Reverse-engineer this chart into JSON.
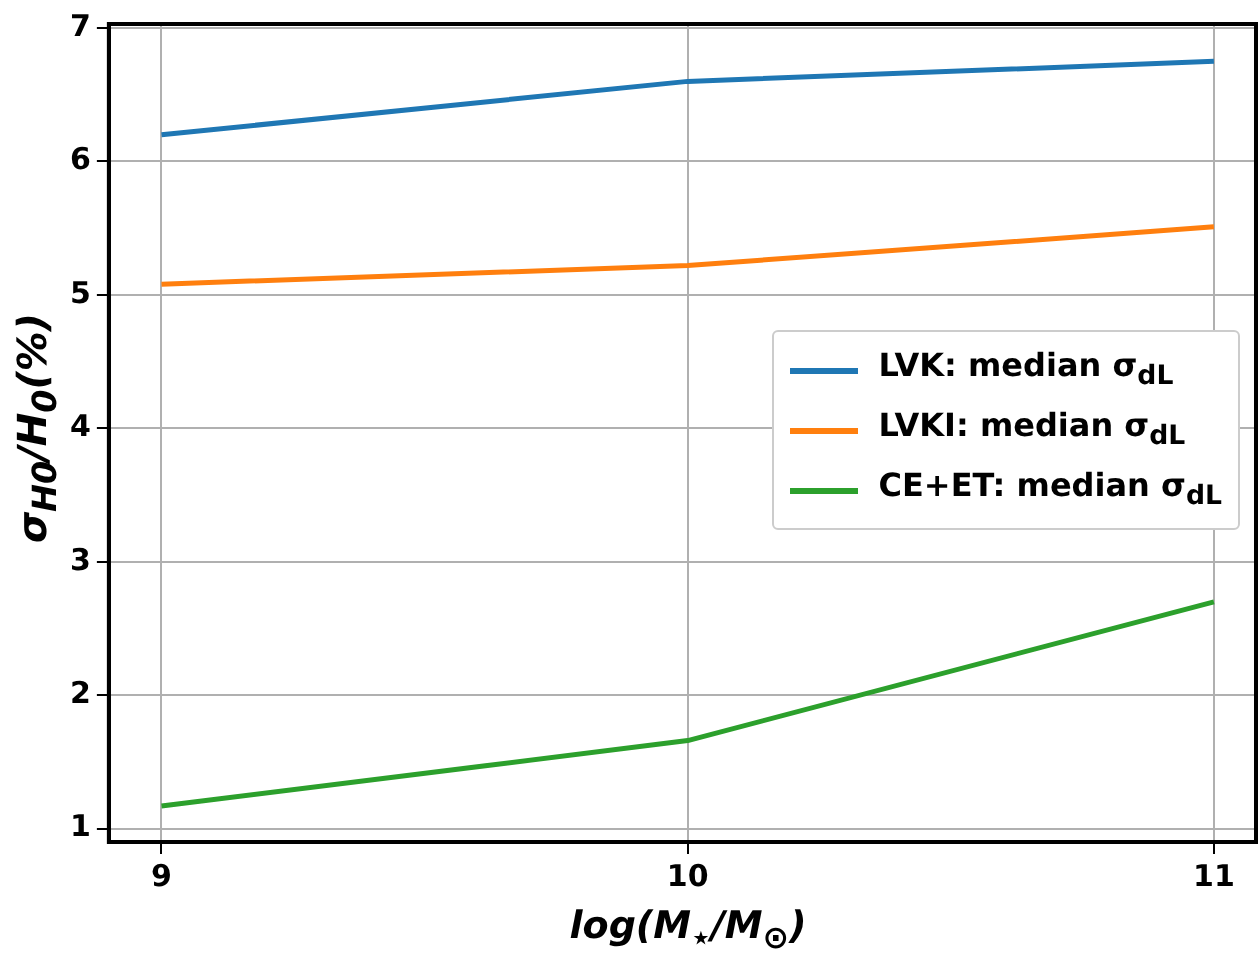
{
  "chart_data": {
    "type": "line",
    "xlabel": "log(M$_{⋆}$/M$_{⊙}$)",
    "ylabel": "σ$_{H0}$/H$_{0}$(%)",
    "x": [
      9,
      10,
      11
    ],
    "series": [
      {
        "name": "LVK: median σ$_{dL}$",
        "color": "#1f77b4",
        "values": [
          6.2,
          6.6,
          6.75
        ]
      },
      {
        "name": "LVKI: median σ$_{dL}$",
        "color": "#ff7f0e",
        "values": [
          5.08,
          5.22,
          5.51
        ]
      },
      {
        "name": "CE+ET: median σ$_{dL}$",
        "color": "#2ca02c",
        "values": [
          1.17,
          1.66,
          2.7
        ]
      }
    ],
    "xlim": [
      8.9,
      11.08
    ],
    "xticks": [
      9,
      10,
      11
    ],
    "ylim": [
      0.9,
      7.03
    ],
    "yticks": [
      1,
      2,
      3,
      4,
      5,
      6,
      7
    ],
    "grid": true,
    "legend": "right",
    "marker": "none",
    "line_style": "solid"
  }
}
